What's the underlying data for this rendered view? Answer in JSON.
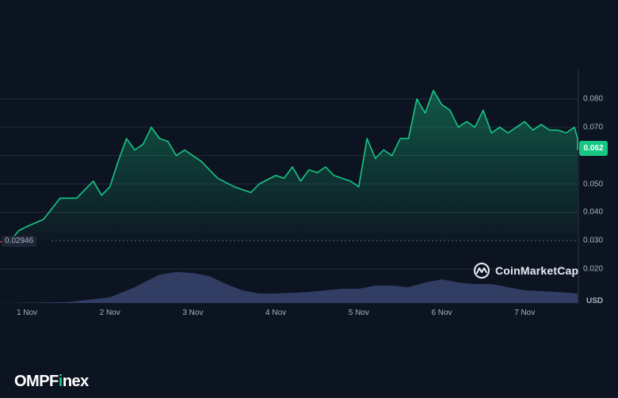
{
  "chart_data": {
    "type": "line",
    "title": "",
    "xlabel": "",
    "ylabel": "USD",
    "ylim": [
      0.015,
      0.088
    ],
    "grid": true,
    "x_ticks": [
      "1 Nov",
      "2 Nov",
      "3 Nov",
      "4 Nov",
      "5 Nov",
      "6 Nov",
      "7 Nov"
    ],
    "y_ticks": [
      "0.080",
      "0.070",
      "0.050",
      "0.040",
      "0.030",
      "0.020"
    ],
    "series": [
      {
        "name": "Price",
        "color": "#16c784",
        "x": [
          0.3,
          0.5,
          0.7,
          0.8,
          0.9,
          1.0,
          1.2,
          1.4,
          1.6,
          1.8,
          1.9,
          2.0,
          2.1,
          2.2,
          2.3,
          2.4,
          2.5,
          2.55,
          2.6,
          2.7,
          2.8,
          2.9,
          3.0,
          3.1,
          3.3,
          3.5,
          3.7,
          3.8,
          4.0,
          4.1,
          4.2,
          4.3,
          4.4,
          4.5,
          4.6,
          4.7,
          4.8,
          4.9,
          5.0,
          5.1,
          5.2,
          5.3,
          5.4,
          5.5,
          5.6,
          5.7,
          5.8,
          5.9,
          6.0,
          6.1,
          6.2,
          6.3,
          6.4,
          6.5,
          6.6,
          6.7,
          6.8,
          6.9,
          7.0,
          7.1,
          7.2,
          7.3,
          7.4,
          7.5,
          7.6,
          7.7,
          7.8
        ],
        "values": [
          0.0295,
          0.0293,
          0.0296,
          0.03,
          0.0335,
          0.035,
          0.0375,
          0.045,
          0.045,
          0.051,
          0.046,
          0.049,
          0.058,
          0.066,
          0.062,
          0.064,
          0.07,
          0.068,
          0.066,
          0.065,
          0.06,
          0.062,
          0.06,
          0.058,
          0.052,
          0.049,
          0.047,
          0.05,
          0.053,
          0.052,
          0.056,
          0.051,
          0.055,
          0.054,
          0.056,
          0.053,
          0.052,
          0.051,
          0.049,
          0.066,
          0.059,
          0.062,
          0.06,
          0.066,
          0.066,
          0.08,
          0.075,
          0.083,
          0.078,
          0.076,
          0.07,
          0.072,
          0.07,
          0.076,
          0.068,
          0.07,
          0.068,
          0.07,
          0.072,
          0.069,
          0.071,
          0.069,
          0.069,
          0.068,
          0.07,
          0.066,
          0.062
        ]
      },
      {
        "name": "Volume",
        "color": "#3a4470",
        "x": [
          0.5,
          1.0,
          1.5,
          2.0,
          2.3,
          2.6,
          2.8,
          3.0,
          3.2,
          3.4,
          3.6,
          3.8,
          4.0,
          4.4,
          4.8,
          5.0,
          5.2,
          5.4,
          5.6,
          5.8,
          6.0,
          6.2,
          6.4,
          6.6,
          6.8,
          7.0,
          7.4,
          7.8
        ],
        "values": [
          0.0,
          0.01,
          0.03,
          0.18,
          0.5,
          0.9,
          0.98,
          0.95,
          0.85,
          0.6,
          0.4,
          0.3,
          0.3,
          0.35,
          0.45,
          0.45,
          0.55,
          0.55,
          0.5,
          0.65,
          0.75,
          0.65,
          0.6,
          0.6,
          0.5,
          0.4,
          0.35,
          0.3
        ]
      }
    ],
    "current_price": "0.062",
    "start_price": "0.02946"
  },
  "axis": {
    "currency": "USD"
  },
  "watermark": {
    "label": "CoinMarketCap"
  },
  "brand": {
    "prefix": "OMPF",
    "accent": "i",
    "suffix": "nex"
  }
}
